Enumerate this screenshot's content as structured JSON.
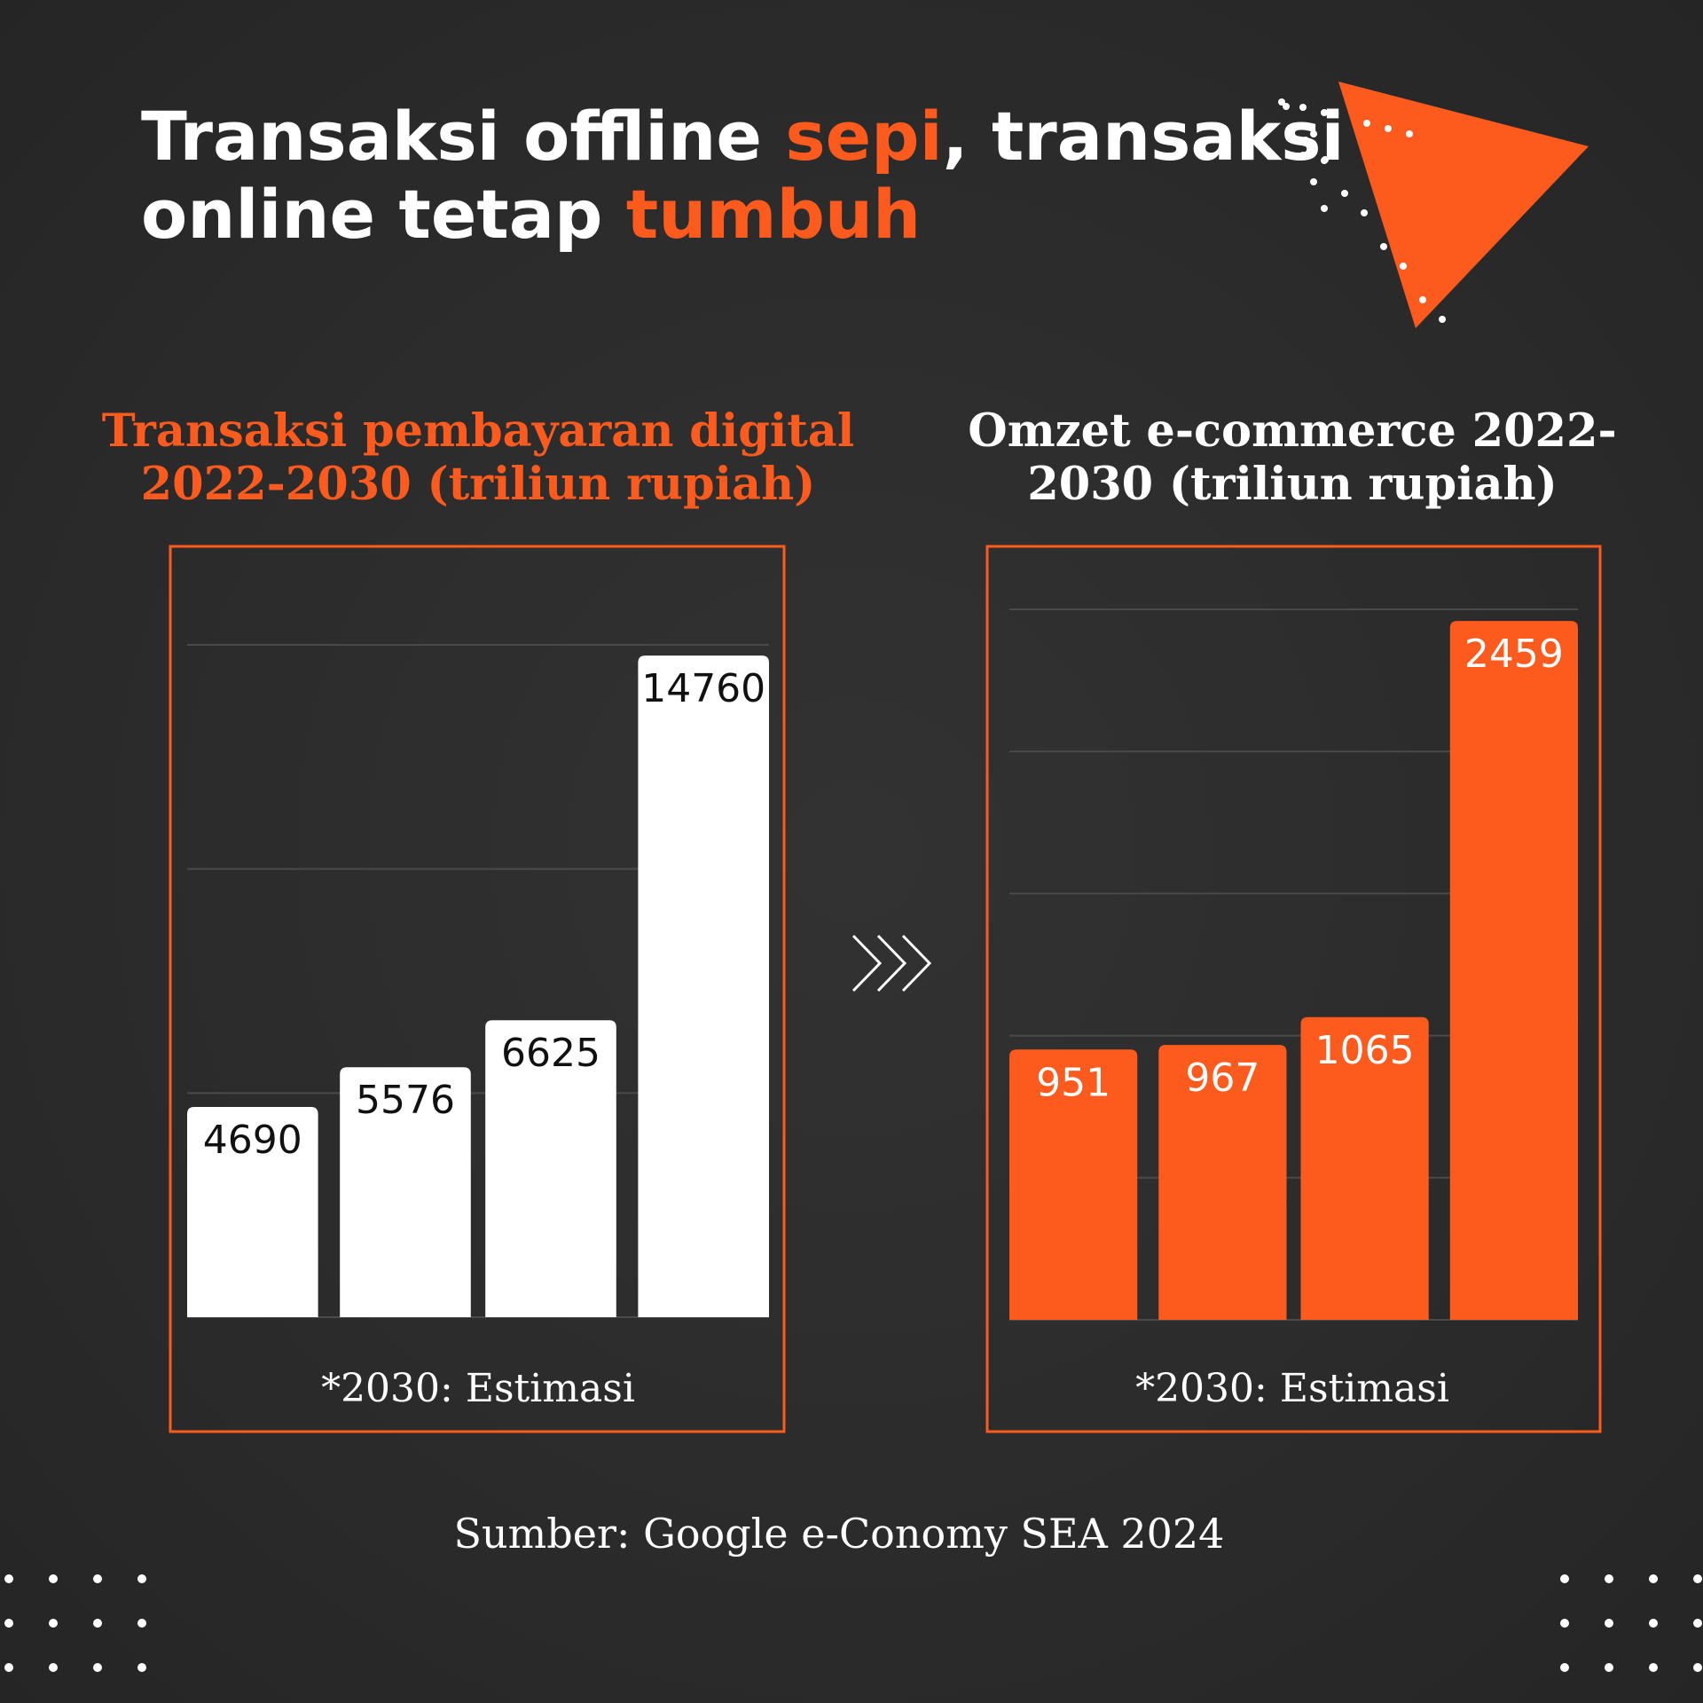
{
  "header": {
    "title": [
      "Transaksi offline ",
      "sepi",
      ", transaksi",
      "online tetap ",
      "tumbuh"
    ]
  },
  "chart_data": [
    {
      "type": "bar",
      "title": [
        "Transaksi pembayaran digital",
        "2022-2030 (triliun rupiah)"
      ],
      "title_color": "#fd5a1e",
      "values": [
        4690,
        5576,
        6625,
        14760
      ],
      "color": "#ffffff",
      "value_label_color": "#111111",
      "ylim": [
        0,
        15000
      ],
      "yticks": [
        0,
        5000,
        10000,
        15000
      ],
      "grid": true,
      "note": "*2030: Estimasi"
    },
    {
      "type": "bar",
      "title": [
        "Omzet e-commerce 2022-",
        "2030 (triliun rupiah)"
      ],
      "title_color": "#ffffff",
      "values": [
        951,
        967,
        1065,
        2459
      ],
      "color": "#fd5a1e",
      "value_label_color": "#ffffff",
      "ylim": [
        0,
        2500
      ],
      "yticks": [
        0,
        500,
        1000,
        1500,
        2000,
        2500
      ],
      "grid": true,
      "note": "*2030: Estimasi"
    }
  ],
  "source": "Sumber: Google e-Conomy SEA 2024"
}
